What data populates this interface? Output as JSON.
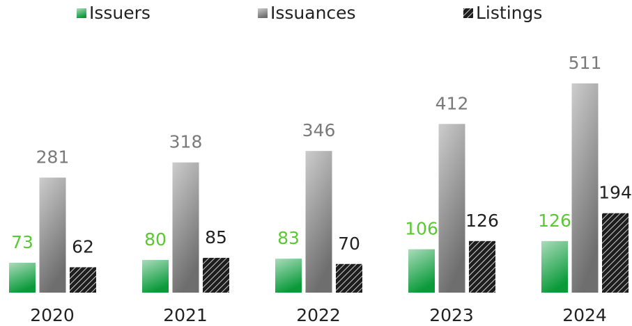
{
  "chart_data": {
    "type": "bar",
    "categories": [
      "2020",
      "2021",
      "2022",
      "2023",
      "2024"
    ],
    "series": [
      {
        "name": "Issuers",
        "color": "#0a9a3a",
        "label_color": "#5ac833",
        "fill": "gradient",
        "values": [
          73,
          80,
          83,
          106,
          126
        ]
      },
      {
        "name": "Issuances",
        "color": "#6e6e6e",
        "label_color": "#7a7a7a",
        "fill": "gradient",
        "values": [
          281,
          318,
          346,
          412,
          511
        ]
      },
      {
        "name": "Listings",
        "color": "#1e1e1e",
        "label_color": "#222222",
        "fill": "hatch",
        "values": [
          62,
          85,
          70,
          126,
          194
        ]
      }
    ],
    "legend": "top"
  }
}
